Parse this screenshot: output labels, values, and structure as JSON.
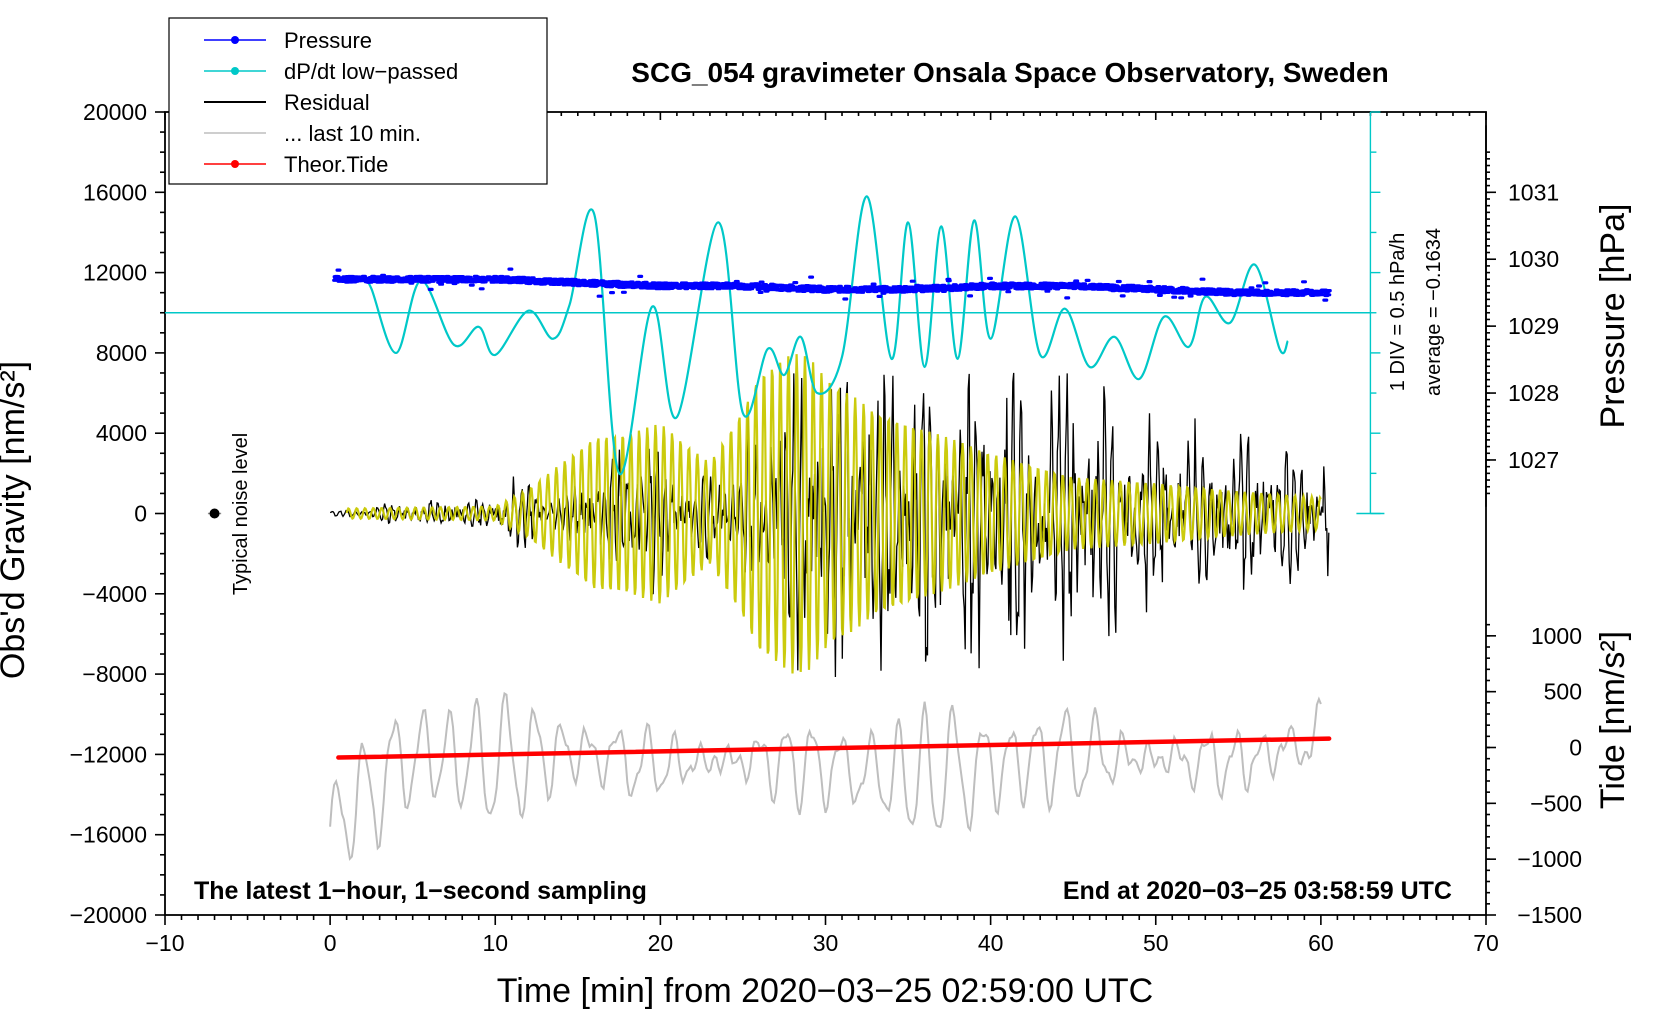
{
  "chart_data": {
    "type": "line",
    "title": "SCG_054 gravimeter Onsala Space Observatory, Sweden",
    "xlabel": "Time [min] from 2020−03−25 02:59:00 UTC",
    "ylabel_left": "Obs'd Gravity [nm/s²]",
    "ylabel_pressure": "Pressure [hPa]",
    "ylabel_tide": "Tide [nm/s²]",
    "xlim": [
      -10,
      70
    ],
    "ylim": [
      -20000,
      20000
    ],
    "x_ticks": [
      -10,
      0,
      10,
      20,
      30,
      40,
      50,
      60,
      70
    ],
    "x_tick_labels": [
      "−10",
      "0",
      "10",
      "20",
      "30",
      "40",
      "50",
      "60",
      "70"
    ],
    "y_ticks": [
      -20000,
      -16000,
      -12000,
      -8000,
      -4000,
      0,
      4000,
      8000,
      12000,
      16000,
      20000
    ],
    "y_tick_labels": [
      "−20000",
      "−16000",
      "−12000",
      "−8000",
      "−4000",
      "0",
      "4000",
      "8000",
      "12000",
      "16000",
      "20000"
    ],
    "pressure_axis": {
      "range_hpa": [
        1026,
        1032
      ],
      "ticks": [
        1027,
        1028,
        1029,
        1030,
        1031
      ],
      "tick_labels": [
        "1027",
        "1028",
        "1029",
        "1030",
        "1031"
      ]
    },
    "tide_axis": {
      "range": [
        -1500,
        1500
      ],
      "ticks": [
        -1500,
        -1000,
        -500,
        0,
        500,
        1000
      ],
      "tick_labels": [
        "−1500",
        "−1000",
        "−500",
        "0",
        "500",
        "1000"
      ]
    },
    "legend": [
      {
        "name": "Pressure",
        "color": "#0000ff",
        "marker": true
      },
      {
        "name": "dP/dt low−passed",
        "color": "#00c8c8",
        "marker": true
      },
      {
        "name": "Residual",
        "color": "#000000",
        "marker": false
      },
      {
        "name": "... last 10 min.",
        "color": "#bebebe",
        "marker": false
      },
      {
        "name": "Theor.Tide",
        "color": "#ff0000",
        "marker": true
      }
    ],
    "series": [
      {
        "name": "Pressure",
        "color": "#0000ff",
        "units": "hPa",
        "x": [
          0.3,
          5,
          10,
          15,
          20,
          25,
          30,
          35,
          40,
          45,
          50,
          55,
          60.5
        ],
        "values": [
          1029.7,
          1029.7,
          1029.7,
          1029.65,
          1029.6,
          1029.6,
          1029.55,
          1029.55,
          1029.6,
          1029.6,
          1029.55,
          1029.5,
          1029.5
        ]
      },
      {
        "name": "dP/dt low−passed",
        "color": "#00c8c8",
        "units": "nm/s² (plot scale, zero line at 10000)",
        "x": [
          2,
          2.5,
          4,
          5.5,
          7.5,
          9,
          10,
          12,
          13.5,
          14.5,
          16,
          17.5,
          19.5,
          21,
          23.5,
          25,
          26.5,
          27.5,
          28.5,
          29.5,
          31,
          32.5,
          34,
          35,
          36,
          37,
          38,
          39,
          40,
          41.5,
          43,
          44.5,
          46,
          47.5,
          49,
          50.5,
          52,
          53,
          54.5,
          56,
          57.5,
          58
        ],
        "values": [
          11800,
          11200,
          8000,
          11600,
          8400,
          9300,
          7900,
          10100,
          8700,
          10400,
          14900,
          2000,
          10300,
          4800,
          14500,
          5000,
          8200,
          6900,
          8800,
          6000,
          7800,
          15800,
          7700,
          14500,
          7300,
          14300,
          7700,
          14600,
          8700,
          14800,
          7900,
          10200,
          7300,
          8800,
          6700,
          9800,
          8300,
          10800,
          9500,
          12400,
          8200,
          8600
        ]
      },
      {
        "name": "Residual",
        "color": "#000000",
        "units": "nm/s²",
        "x": [
          0,
          2,
          5,
          9,
          10,
          11,
          12,
          14,
          15,
          16,
          17,
          18,
          19,
          20,
          22,
          24,
          25,
          25.5,
          26,
          27,
          28,
          29,
          30,
          32,
          34,
          36,
          38,
          40,
          42,
          44,
          46,
          48,
          50,
          52,
          54,
          56,
          58,
          60.5
        ],
        "envelope": [
          150,
          250,
          800,
          700,
          1200,
          2300,
          1800,
          1000,
          2000,
          2800,
          3400,
          4500,
          5600,
          3500,
          1800,
          3800,
          2200,
          6500,
          7700,
          8300,
          8700,
          8700,
          8900,
          8800,
          8800,
          8800,
          8700,
          8700,
          8700,
          8300,
          7500,
          6600,
          5600,
          5000,
          4600,
          4300,
          3800,
          3300
        ]
      },
      {
        "name": "... last 10 min.",
        "color": "#bebebe",
        "units": "nm/s² (offset display)",
        "x": [
          0,
          5,
          10,
          15,
          20,
          25,
          30,
          35,
          40,
          45,
          50,
          55,
          60
        ],
        "values": [
          -15600,
          -12000,
          -12400,
          -11800,
          -12600,
          -12200,
          -12600,
          -13200,
          -12600,
          -12000,
          -12200,
          -12400,
          -11200
        ]
      },
      {
        "name": "Theor.Tide",
        "color": "#ff0000",
        "units": "nm/s²",
        "x": [
          0.5,
          60.5
        ],
        "values": [
          -90,
          80
        ]
      },
      {
        "name": "Yellow band-passed residual",
        "color": "#c8c800",
        "units": "nm/s²",
        "x": [
          1,
          10,
          12,
          16,
          18,
          20,
          23,
          25,
          26,
          28,
          29,
          30,
          33,
          36,
          40,
          45,
          50,
          55,
          60
        ],
        "envelope": [
          250,
          350,
          1200,
          3800,
          4000,
          4500,
          2500,
          5200,
          7000,
          8000,
          7800,
          6800,
          5100,
          4200,
          3000,
          1800,
          1500,
          1100,
          800
        ]
      }
    ],
    "annotations": {
      "scale_note": "1 DIV = 0.5 hPa/h",
      "average_note": "average = −0.1634",
      "noise_label": "Typical noise level",
      "bottom_left": "The latest 1−hour, 1−second sampling",
      "bottom_right": "End at 2020−03−25 03:58:59 UTC"
    }
  }
}
